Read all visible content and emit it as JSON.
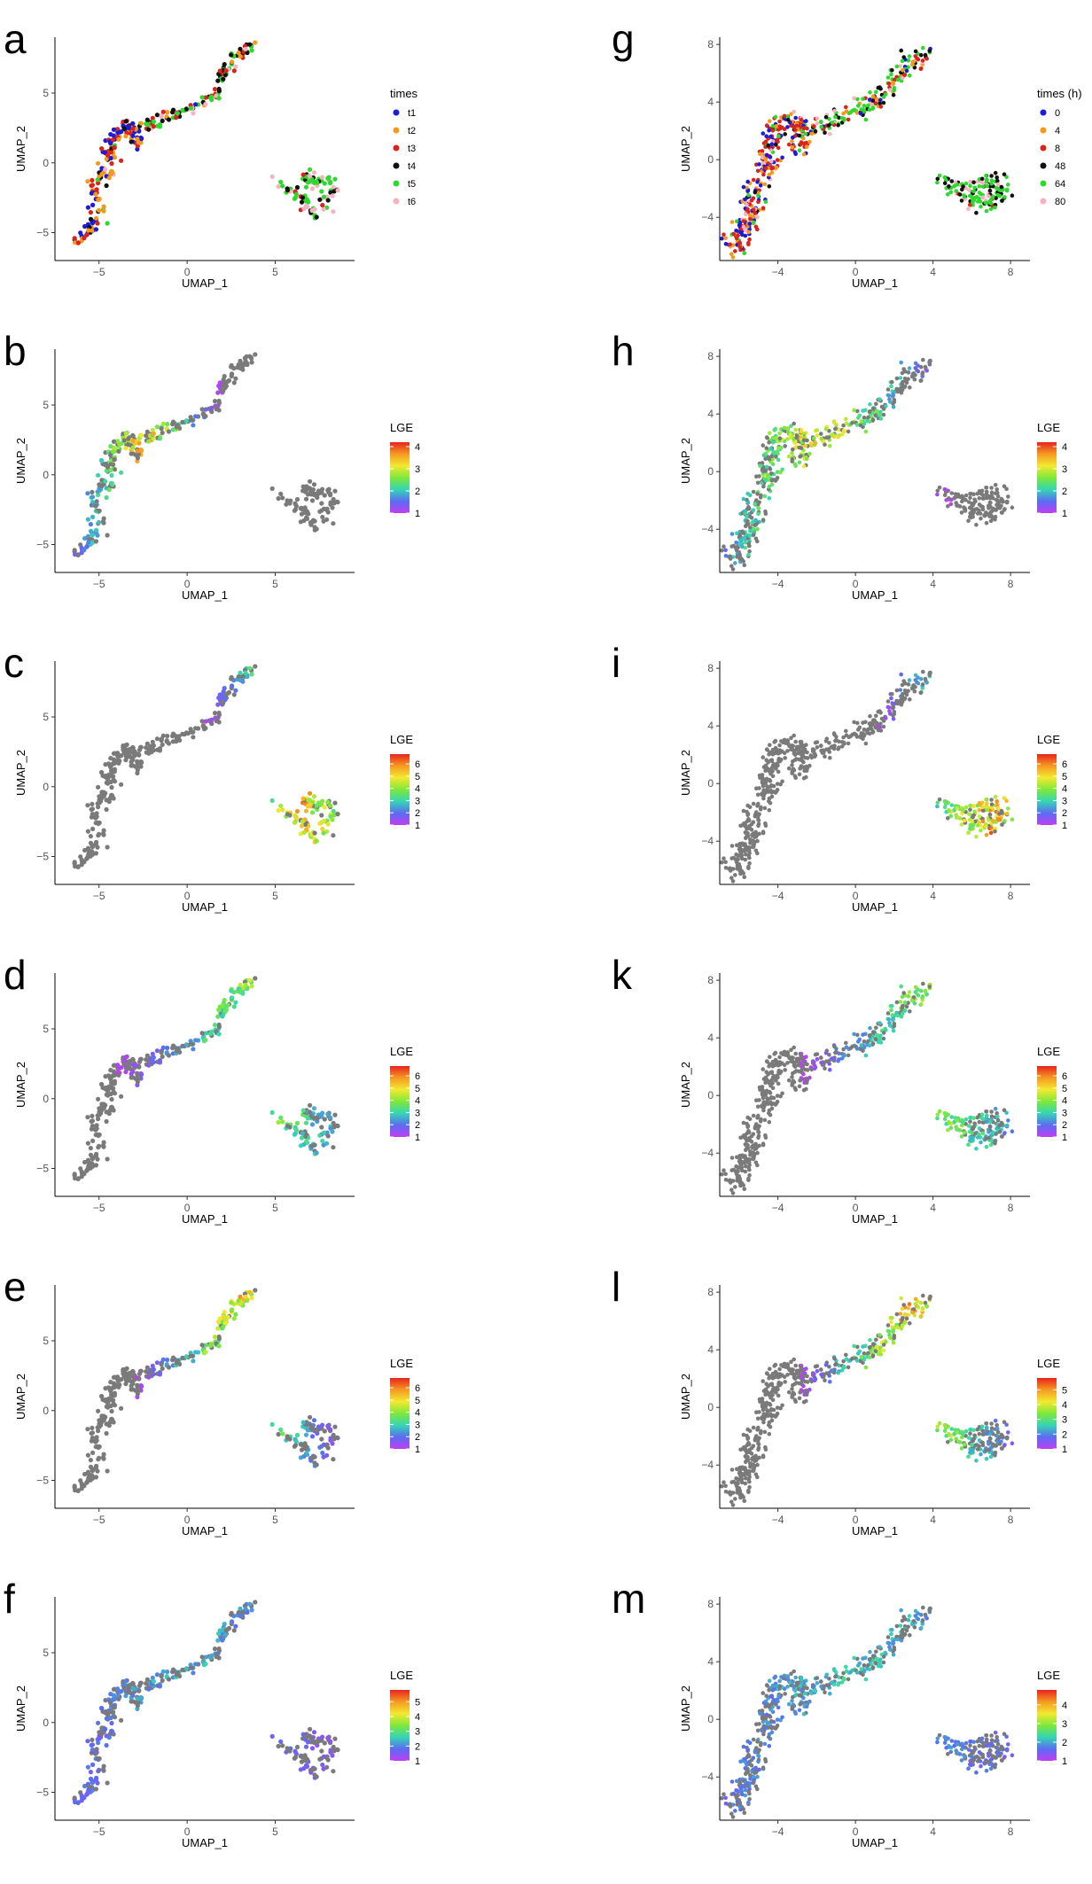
{
  "chart_data": [
    {
      "panel": "a",
      "type": "scatter",
      "dataset": "left",
      "xlabel": "UMAP_1",
      "ylabel": "UMAP_2",
      "xlim": [
        -7.5,
        9.5
      ],
      "ylim": [
        -7,
        9
      ],
      "xticks": [
        -5,
        0,
        5
      ],
      "yticks": [
        -5,
        0,
        5
      ],
      "grid": false,
      "legend": "right",
      "legend_type": "categorical",
      "legend_title": "times",
      "colors_by": "time",
      "categories": [
        "t1",
        "t2",
        "t3",
        "t4",
        "t5",
        "t6"
      ],
      "category_colors": [
        "#1b1bd8",
        "#f39a1a",
        "#d8241d",
        "#111111",
        "#2ed82e",
        "#f5b3c1"
      ]
    },
    {
      "panel": "b",
      "type": "scatter",
      "dataset": "left",
      "xlabel": "UMAP_1",
      "ylabel": "UMAP_2",
      "xlim": [
        -7.5,
        9.5
      ],
      "ylim": [
        -7,
        9
      ],
      "xticks": [
        -5,
        0,
        5
      ],
      "yticks": [
        -5,
        0,
        5
      ],
      "grid": false,
      "legend": "right",
      "legend_type": "gradient",
      "legend_title": "LGE",
      "legend_ticks": [
        1,
        2,
        3,
        4
      ],
      "gradient_max": 4.2,
      "expr": {
        "x_center": -2.5,
        "width": 4.5,
        "max": 4.0,
        "frac": 0.7
      }
    },
    {
      "panel": "c",
      "type": "scatter",
      "dataset": "left",
      "xlabel": "UMAP_1",
      "ylabel": "UMAP_2",
      "xlim": [
        -7.5,
        9.5
      ],
      "ylim": [
        -7,
        9
      ],
      "xticks": [
        -5,
        0,
        5
      ],
      "yticks": [
        -5,
        0,
        5
      ],
      "grid": false,
      "legend": "right",
      "legend_type": "gradient",
      "legend_title": "LGE",
      "legend_ticks": [
        1,
        2,
        3,
        4,
        5,
        6
      ],
      "gradient_max": 6.8,
      "expr": {
        "x_center": 6.5,
        "width": 5.5,
        "max": 6.5,
        "frac": 0.9
      }
    },
    {
      "panel": "d",
      "type": "scatter",
      "dataset": "left",
      "xlabel": "UMAP_1",
      "ylabel": "UMAP_2",
      "xlim": [
        -7.5,
        9.5
      ],
      "ylim": [
        -7,
        9
      ],
      "xticks": [
        -5,
        0,
        5
      ],
      "yticks": [
        -5,
        0,
        5
      ],
      "grid": false,
      "legend": "right",
      "legend_type": "gradient",
      "legend_title": "LGE",
      "legend_ticks": [
        1,
        2,
        3,
        4,
        5,
        6
      ],
      "gradient_max": 6.8,
      "expr": {
        "x_center": 4.0,
        "width": 8.0,
        "max": 5.0,
        "frac": 0.85
      }
    },
    {
      "panel": "e",
      "type": "scatter",
      "dataset": "left",
      "xlabel": "UMAP_1",
      "ylabel": "UMAP_2",
      "xlim": [
        -7.5,
        9.5
      ],
      "ylim": [
        -7,
        9
      ],
      "xticks": [
        -5,
        0,
        5
      ],
      "yticks": [
        -5,
        0,
        5
      ],
      "grid": false,
      "legend": "right",
      "legend_type": "gradient",
      "legend_title": "LGE",
      "legend_ticks": [
        1,
        2,
        3,
        4,
        5,
        6
      ],
      "gradient_max": 6.8,
      "expr": {
        "x_center": 3.0,
        "width": 6.0,
        "max": 6.0,
        "frac": 0.85
      }
    },
    {
      "panel": "f",
      "type": "scatter",
      "dataset": "left",
      "xlabel": "UMAP_1",
      "ylabel": "UMAP_2",
      "xlim": [
        -7.5,
        9.5
      ],
      "ylim": [
        -7,
        9
      ],
      "xticks": [
        -5,
        0,
        5
      ],
      "yticks": [
        -5,
        0,
        5
      ],
      "grid": false,
      "legend": "right",
      "legend_type": "gradient",
      "legend_title": "LGE",
      "legend_ticks": [
        1,
        2,
        3,
        4,
        5
      ],
      "gradient_max": 5.8,
      "expr": {
        "x_center": 0.0,
        "width": 12.0,
        "max": 2.8,
        "frac": 0.6
      }
    },
    {
      "panel": "g",
      "type": "scatter",
      "dataset": "right",
      "xlabel": "UMAP_1",
      "ylabel": "UMAP_2",
      "xlim": [
        -7,
        9
      ],
      "ylim": [
        -7,
        8.5
      ],
      "xticks": [
        -4,
        0,
        4,
        8
      ],
      "yticks": [
        -4,
        0,
        4,
        8
      ],
      "grid": false,
      "legend": "right",
      "legend_type": "categorical",
      "legend_title": "times (h)",
      "colors_by": "time",
      "categories": [
        "0",
        "4",
        "8",
        "48",
        "64",
        "80"
      ],
      "category_colors": [
        "#1b1bd8",
        "#f39a1a",
        "#d8241d",
        "#111111",
        "#2ed82e",
        "#f5b3c1"
      ]
    },
    {
      "panel": "h",
      "type": "scatter",
      "dataset": "right",
      "xlabel": "UMAP_1",
      "ylabel": "UMAP_2",
      "xlim": [
        -7,
        9
      ],
      "ylim": [
        -7,
        8.5
      ],
      "xticks": [
        -4,
        0,
        4,
        8
      ],
      "yticks": [
        -4,
        0,
        4,
        8
      ],
      "grid": false,
      "legend": "right",
      "legend_type": "gradient",
      "legend_title": "LGE",
      "legend_ticks": [
        1,
        2,
        3,
        4
      ],
      "gradient_max": 4.2,
      "expr": {
        "x_center": -2.0,
        "width": 7.0,
        "max": 3.8,
        "frac": 0.75
      }
    },
    {
      "panel": "i",
      "type": "scatter",
      "dataset": "right",
      "xlabel": "UMAP_1",
      "ylabel": "UMAP_2",
      "xlim": [
        -7,
        9
      ],
      "ylim": [
        -7,
        8.5
      ],
      "xticks": [
        -4,
        0,
        4,
        8
      ],
      "yticks": [
        -4,
        0,
        4,
        8
      ],
      "grid": false,
      "legend": "right",
      "legend_type": "gradient",
      "legend_title": "LGE",
      "legend_ticks": [
        1,
        2,
        3,
        4,
        5,
        6
      ],
      "gradient_max": 6.8,
      "expr": {
        "x_center": 7.0,
        "width": 6.0,
        "max": 6.5,
        "frac": 0.85
      }
    },
    {
      "panel": "k",
      "type": "scatter",
      "dataset": "right",
      "xlabel": "UMAP_1",
      "ylabel": "UMAP_2",
      "xlim": [
        -7,
        9
      ],
      "ylim": [
        -7,
        8.5
      ],
      "xticks": [
        -4,
        0,
        4,
        8
      ],
      "yticks": [
        -4,
        0,
        4,
        8
      ],
      "grid": false,
      "legend": "right",
      "legend_type": "gradient",
      "legend_title": "LGE",
      "legend_ticks": [
        1,
        2,
        3,
        4,
        5,
        6
      ],
      "gradient_max": 6.8,
      "expr": {
        "x_center": 4.0,
        "width": 7.0,
        "max": 5.0,
        "frac": 0.85
      }
    },
    {
      "panel": "l",
      "type": "scatter",
      "dataset": "right",
      "xlabel": "UMAP_1",
      "ylabel": "UMAP_2",
      "xlim": [
        -7,
        9
      ],
      "ylim": [
        -7,
        8.5
      ],
      "xticks": [
        -4,
        0,
        4,
        8
      ],
      "yticks": [
        -4,
        0,
        4,
        8
      ],
      "grid": false,
      "legend": "right",
      "legend_type": "gradient",
      "legend_title": "LGE",
      "legend_ticks": [
        1,
        2,
        3,
        4,
        5
      ],
      "gradient_max": 5.8,
      "expr": {
        "x_center": 3.0,
        "width": 6.0,
        "max": 5.5,
        "frac": 0.85
      }
    },
    {
      "panel": "m",
      "type": "scatter",
      "dataset": "right",
      "xlabel": "UMAP_1",
      "ylabel": "UMAP_2",
      "xlim": [
        -7,
        9
      ],
      "ylim": [
        -7,
        8.5
      ],
      "xticks": [
        -4,
        0,
        4,
        8
      ],
      "yticks": [
        -4,
        0,
        4,
        8
      ],
      "grid": false,
      "legend": "right",
      "legend_type": "gradient",
      "legend_title": "LGE",
      "legend_ticks": [
        1,
        2,
        3,
        4
      ],
      "gradient_max": 4.8,
      "expr": {
        "x_center": 0.0,
        "width": 14.0,
        "max": 2.6,
        "frac": 0.7
      }
    }
  ],
  "colors": {
    "inactive": "#7a7a7a",
    "gradient_stops": [
      "#c13df2",
      "#5b6cf2",
      "#35d6b4",
      "#7fe83a",
      "#f3e930",
      "#f59a22",
      "#e8231d"
    ]
  },
  "point_cloud": {
    "left_clusters": [
      {
        "segment": [
          [
            -6.2,
            -5.8
          ],
          [
            -5.0,
            -3.6
          ],
          [
            -5.3,
            -2.0
          ],
          [
            -4.6,
            -0.5
          ],
          [
            -4.4,
            1.2
          ],
          [
            -4.0,
            2.4
          ],
          [
            -3.0,
            2.6
          ],
          [
            -2.9,
            1.2
          ]
        ],
        "noise": 0.45,
        "count": 170,
        "time_weights": [
          0.3,
          0.3,
          0.3,
          0.05,
          0.03,
          0.02
        ]
      },
      {
        "segment": [
          [
            -2.8,
            2.3
          ],
          [
            -1.6,
            3.1
          ],
          [
            -0.5,
            3.6
          ],
          [
            0.6,
            4.2
          ],
          [
            1.6,
            4.8
          ],
          [
            2.0,
            6.0
          ],
          [
            2.6,
            7.4
          ],
          [
            3.8,
            8.5
          ]
        ],
        "noise": 0.35,
        "count": 120,
        "time_weights": [
          0.02,
          0.08,
          0.2,
          0.3,
          0.3,
          0.1
        ]
      },
      {
        "segment": [
          [
            5.0,
            -1.3
          ],
          [
            6.4,
            -2.4
          ],
          [
            7.4,
            -3.6
          ],
          [
            8.6,
            -1.4
          ],
          [
            6.6,
            -0.9
          ],
          [
            7.8,
            -2.2
          ]
        ],
        "noise": 0.45,
        "count": 90,
        "time_weights": [
          0.0,
          0.0,
          0.05,
          0.25,
          0.45,
          0.25
        ]
      }
    ],
    "right_clusters": [
      {
        "segment": [
          [
            -6.2,
            -6.0
          ],
          [
            -5.4,
            -4.0
          ],
          [
            -5.1,
            -2.0
          ],
          [
            -4.6,
            -0.2
          ],
          [
            -4.3,
            1.5
          ],
          [
            -3.9,
            2.8
          ],
          [
            -2.8,
            2.5
          ],
          [
            -2.9,
            0.5
          ]
        ],
        "noise": 0.55,
        "count": 320,
        "time_weights": [
          0.3,
          0.25,
          0.3,
          0.05,
          0.05,
          0.05
        ]
      },
      {
        "segment": [
          [
            -2.6,
            1.8
          ],
          [
            -1.0,
            2.8
          ],
          [
            0.4,
            3.6
          ],
          [
            1.4,
            4.6
          ],
          [
            2.2,
            5.6
          ],
          [
            2.8,
            6.6
          ],
          [
            3.6,
            7.6
          ]
        ],
        "noise": 0.55,
        "count": 180,
        "time_weights": [
          0.02,
          0.12,
          0.16,
          0.3,
          0.3,
          0.1
        ]
      },
      {
        "segment": [
          [
            4.6,
            -1.4
          ],
          [
            5.6,
            -2.4
          ],
          [
            6.6,
            -3.2
          ],
          [
            7.6,
            -2.4
          ],
          [
            7.0,
            -1.4
          ],
          [
            5.9,
            -1.9
          ]
        ],
        "noise": 0.55,
        "count": 150,
        "time_weights": [
          0.0,
          0.0,
          0.05,
          0.3,
          0.45,
          0.2
        ]
      }
    ]
  }
}
